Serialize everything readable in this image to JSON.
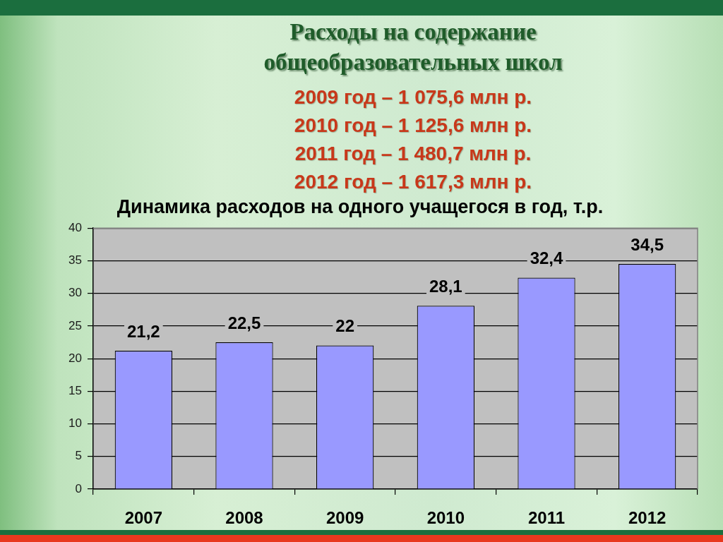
{
  "chart_data": {
    "type": "bar",
    "title": "Расходы на содержание общеобразовательных школ",
    "subtitle": "Динамика расходов на одного учащегося в год, т.р.",
    "annotations": [
      "2009 год – 1 075,6 млн р.",
      "2010 год – 1 125,6 млн р.",
      "2011 год – 1 480,7 млн р.",
      "2012 год – 1 617,3 млн р."
    ],
    "categories": [
      "2007",
      "2008",
      "2009",
      "2010",
      "2011",
      "2012"
    ],
    "values": [
      21.2,
      22.5,
      22,
      28.1,
      32.4,
      34.5
    ],
    "color": "#9999ff",
    "value_labels": [
      "21,2",
      "22,5",
      "22",
      "28,1",
      "32,4",
      "34,5"
    ],
    "ylim": [
      0,
      40
    ],
    "yticks": [
      0,
      5,
      10,
      15,
      20,
      25,
      30,
      35,
      40
    ],
    "grid": "y"
  }
}
